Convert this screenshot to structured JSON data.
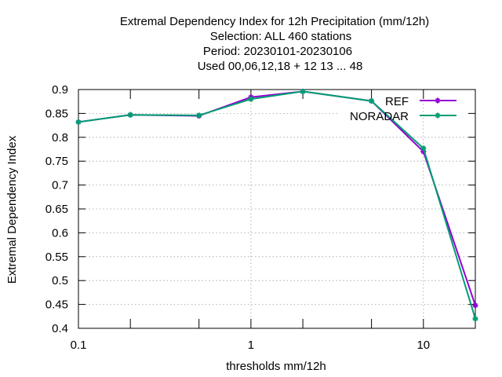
{
  "chart_data": {
    "type": "line",
    "title_lines": [
      "Extremal Dependency Index  for 12h Precipitation (mm/12h)",
      "Selection: ALL     460 stations",
      "Period: 20230101-20230106",
      "Used  00,06,12,18 + 12 13 ... 48"
    ],
    "xlabel": "thresholds mm/12h",
    "ylabel": "Extremal Dependency Index",
    "x_scale": "log",
    "xlim": [
      0.1,
      20
    ],
    "ylim": [
      0.4,
      0.9
    ],
    "x_major_ticks": [
      0.1,
      1,
      10
    ],
    "x_tick_labels": [
      "0.1",
      "1",
      "10"
    ],
    "x_minor_ticks": [
      0.2,
      0.5,
      2,
      5,
      20
    ],
    "y_ticks": [
      0.4,
      0.45,
      0.5,
      0.55,
      0.6,
      0.65,
      0.7,
      0.75,
      0.8,
      0.85,
      0.9
    ],
    "y_tick_labels": [
      "0.4",
      "0.45",
      "0.5",
      "0.55",
      "0.6",
      "0.65",
      "0.7",
      "0.75",
      "0.8",
      "0.85",
      "0.9"
    ],
    "grid": true,
    "legend_position": "top-right",
    "x": [
      0.1,
      0.2,
      0.5,
      1,
      2,
      5,
      10,
      20
    ],
    "series": [
      {
        "name": "REF",
        "color": "#9400d3",
        "values": [
          0.832,
          0.847,
          0.845,
          0.884,
          0.896,
          0.876,
          0.77,
          0.448
        ]
      },
      {
        "name": "NORADAR",
        "color": "#009e73",
        "values": [
          0.832,
          0.847,
          0.846,
          0.88,
          0.896,
          0.876,
          0.777,
          0.42
        ]
      }
    ]
  }
}
